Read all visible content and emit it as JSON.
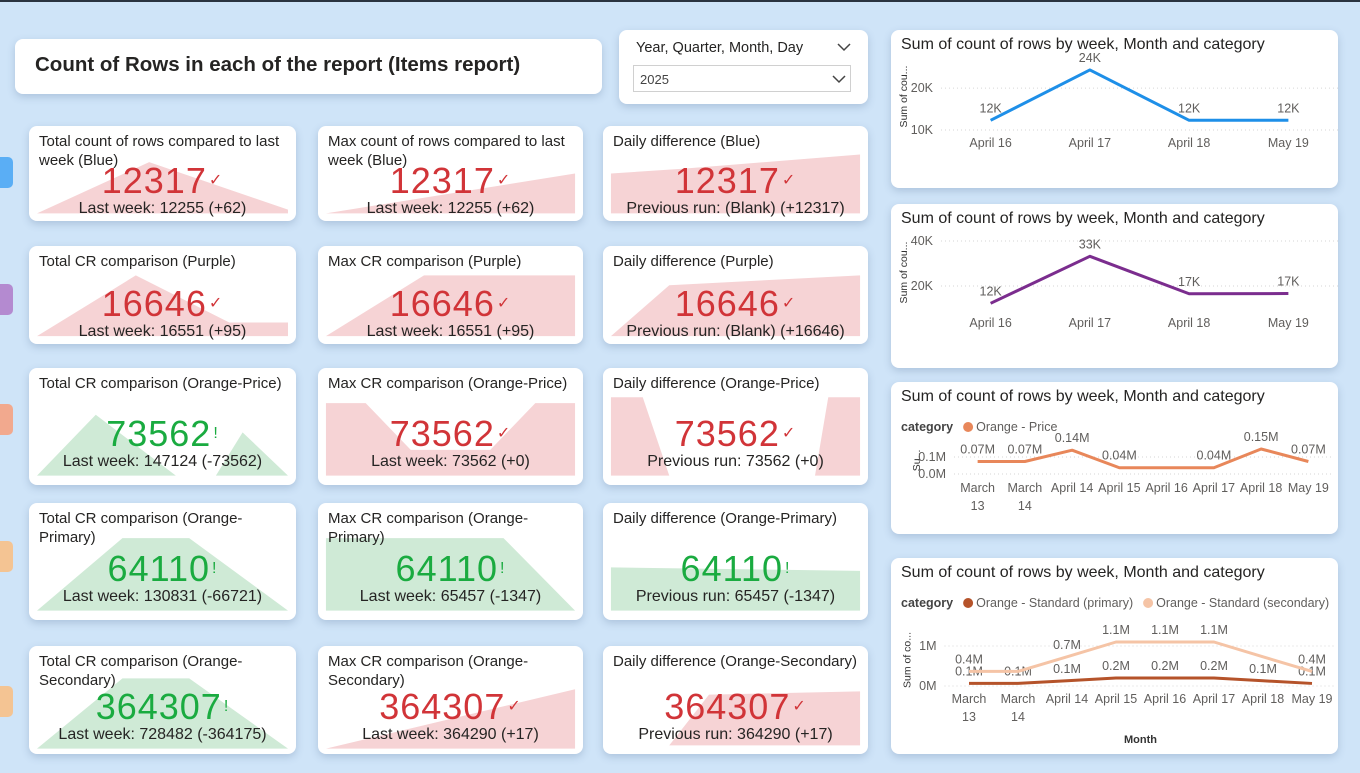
{
  "header": {
    "title": "Count of Rows in each of the report (Items report)"
  },
  "slicer": {
    "title": "Year, Quarter, Month, Day",
    "selected": "2025"
  },
  "cards": [
    {
      "title": "Total count of rows compared to last week (Blue)",
      "value": 12317,
      "indicator": "✓",
      "subtitle": "Last week: 12255 (+62)",
      "color": "#d13438",
      "area_color": "#f6d3d5"
    },
    {
      "title": "Max count of rows compared to last week (Blue)",
      "value": 12317,
      "indicator": "✓",
      "subtitle": "Last week: 12255 (+62)",
      "color": "#d13438",
      "area_color": "#f6d3d5"
    },
    {
      "title": "Daily difference (Blue)",
      "value": 12317,
      "indicator": "✓",
      "subtitle": "Previous run: (Blank) (+12317)",
      "color": "#d13438",
      "area_color": "#f6d3d5"
    },
    {
      "title": "Total CR comparison (Purple)",
      "value": 16646,
      "indicator": "✓",
      "subtitle": "Last week: 16551 (+95)",
      "color": "#d13438",
      "area_color": "#f6d3d5"
    },
    {
      "title": "Max CR comparison (Purple)",
      "value": 16646,
      "indicator": "✓",
      "subtitle": "Last week: 16551 (+95)",
      "color": "#d13438",
      "area_color": "#f6d3d5"
    },
    {
      "title": "Daily difference (Purple)",
      "value": 16646,
      "indicator": "✓",
      "subtitle": "Previous run: (Blank) (+16646)",
      "color": "#d13438",
      "area_color": "#f6d3d5"
    },
    {
      "title": "Total CR comparison (Orange-Price)",
      "value": 73562,
      "indicator": "!",
      "subtitle": "Last week: 147124 (-73562)",
      "color": "#1aab40",
      "area_color": "#cfead6"
    },
    {
      "title": "Max CR comparison (Orange-Price)",
      "value": 73562,
      "indicator": "✓",
      "subtitle": "Last week: 73562 (+0)",
      "color": "#d13438",
      "area_color": "#f6d3d5"
    },
    {
      "title": "Daily difference (Orange-Price)",
      "value": 73562,
      "indicator": "✓",
      "subtitle": "Previous run: 73562 (+0)",
      "color": "#d13438",
      "area_color": "#f6d3d5"
    },
    {
      "title": "Total CR comparison (Orange-Primary)",
      "value": 64110,
      "indicator": "!",
      "subtitle": "Last week: 130831 (-66721)",
      "color": "#1aab40",
      "area_color": "#cfead6"
    },
    {
      "title": "Max CR comparison (Orange-Primary)",
      "value": 64110,
      "indicator": "!",
      "subtitle": "Last week: 65457 (-1347)",
      "color": "#1aab40",
      "area_color": "#cfead6"
    },
    {
      "title": "Daily difference (Orange-Primary)",
      "value": 64110,
      "indicator": "!",
      "subtitle": "Previous run: 65457 (-1347)",
      "color": "#1aab40",
      "area_color": "#cfead6"
    },
    {
      "title": "Total CR comparison (Orange-Secondary)",
      "value": 364307,
      "indicator": "!",
      "subtitle": "Last week: 728482 (-364175)",
      "color": "#1aab40",
      "area_color": "#cfead6"
    },
    {
      "title": "Max CR comparison (Orange-Secondary)",
      "value": 364307,
      "indicator": "✓",
      "subtitle": "Last week: 364290 (+17)",
      "color": "#d13438",
      "area_color": "#f6d3d5"
    },
    {
      "title": "Daily difference (Orange-Secondary)",
      "value": 364307,
      "indicator": "✓",
      "subtitle": "Previous run: 364290 (+17)",
      "color": "#d13438",
      "area_color": "#f6d3d5"
    }
  ],
  "chart_data": [
    {
      "type": "line",
      "title": "Sum of count of rows by week, Month and category",
      "y_label": "Sum of cou...",
      "categories": [
        "April 16",
        "April 17",
        "April 18",
        "May 19"
      ],
      "series": [
        {
          "color": "#1e8fe8",
          "values": [
            12317,
            24350,
            12317,
            12317
          ],
          "value_labels": [
            "12K",
            "24K",
            "12K",
            "12K"
          ]
        }
      ],
      "ylim": [
        10000,
        26000
      ],
      "yticks": [
        {
          "value": 10000,
          "label": "10K"
        },
        {
          "value": 20000,
          "label": "20K"
        }
      ],
      "grid": true
    },
    {
      "type": "line",
      "title": "Sum of count of rows by week, Month and category",
      "y_label": "Sum of cou...",
      "categories": [
        "April 16",
        "April 17",
        "April 18",
        "May 19"
      ],
      "series": [
        {
          "color": "#7b2d8e",
          "values": [
            12300,
            33197,
            16551,
            16646
          ],
          "value_labels": [
            "12K",
            "33K",
            "17K",
            "17K"
          ]
        }
      ],
      "ylim": [
        10000,
        42000
      ],
      "yticks": [
        {
          "value": 20000,
          "label": "20K"
        },
        {
          "value": 40000,
          "label": "40K"
        }
      ],
      "grid": true
    },
    {
      "type": "line",
      "title": "Sum of count of rows by week, Month and category",
      "y_label": "Su...",
      "legend_title": "category",
      "categories": [
        "March 13",
        "March 14",
        "April 14",
        "April 15",
        "April 16",
        "April 17",
        "April 18",
        "May 19"
      ],
      "series": [
        {
          "name": "Orange - Price",
          "color": "#e8875a",
          "values": [
            73562,
            73562,
            140000,
            36781,
            36781,
            36781,
            147124,
            73562
          ],
          "value_labels": [
            "0.07M",
            "0.07M",
            "0.14M",
            "0.04M",
            null,
            "0.04M",
            "0.15M",
            "0.07M"
          ]
        }
      ],
      "ylim": [
        0,
        160000
      ],
      "yticks": [
        {
          "value": 0,
          "label": "0.0M"
        },
        {
          "value": 100000,
          "label": "0.1M"
        }
      ],
      "grid": true
    },
    {
      "type": "line",
      "title": "Sum of count of rows by week, Month and category",
      "y_label": "Sum of co...",
      "x_label": "Month",
      "legend_title": "category",
      "categories": [
        "March 13",
        "March 14",
        "April 14",
        "April 15",
        "April 16",
        "April 17",
        "April 18",
        "May 19"
      ],
      "series": [
        {
          "name": "Orange - Standard (primary)",
          "color": "#b5532a",
          "values": [
            64110,
            65457,
            130831,
            200000,
            200000,
            200000,
            130831,
            64110
          ],
          "value_labels": [
            "0.1M",
            "0.1M",
            "0.1M",
            "0.2M",
            "0.2M",
            "0.2M",
            "0.1M",
            "0.1M"
          ]
        },
        {
          "name": "Orange - Standard (secondary)",
          "color": "#f5c4a6",
          "values": [
            364307,
            364290,
            728482,
            1100000,
            1100000,
            1100000,
            728482,
            364307
          ],
          "value_labels": [
            "0.4M",
            null,
            "0.7M",
            "1.1M",
            "1.1M",
            "1.1M",
            null,
            "0.4M"
          ]
        }
      ],
      "ylim": [
        0,
        1300000
      ],
      "yticks": [
        {
          "value": 0,
          "label": "0M"
        },
        {
          "value": 1000000,
          "label": "1M"
        }
      ],
      "grid": true
    }
  ]
}
